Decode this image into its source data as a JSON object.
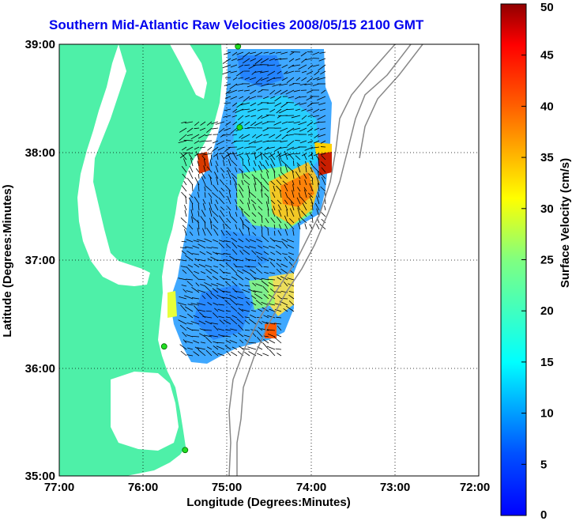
{
  "title": "Southern Mid-Atlantic Raw Velocities 2008/05/15 2100 GMT",
  "x_axis": {
    "label": "Longitude (Degrees:Minutes)",
    "ticks": [
      "77:00",
      "76:00",
      "75:00",
      "74:00",
      "73:00",
      "72:00"
    ]
  },
  "y_axis": {
    "label": "Latitude (Degrees:Minutes)",
    "ticks": [
      "39:00",
      "38:00",
      "37:00",
      "36:00",
      "35:00"
    ]
  },
  "colorbar": {
    "label": "Surface Velocity (cm/s)",
    "ticks": [
      "50",
      "45",
      "40",
      "35",
      "30",
      "25",
      "20",
      "15",
      "10",
      "5",
      "0"
    ],
    "min": 0,
    "max": 50
  },
  "colors": {
    "land": "#4ef0a8",
    "title": "#0000ee",
    "station": "#22dd22"
  },
  "map_extent": {
    "lon": [
      -77,
      -72
    ],
    "lat": [
      35,
      39
    ]
  },
  "stations": [
    {
      "lon": -74.87,
      "lat": 38.98
    },
    {
      "lon": -74.85,
      "lat": 38.23
    },
    {
      "lon": -75.75,
      "lat": 36.2
    },
    {
      "lon": -75.5,
      "lat": 35.24
    }
  ]
}
